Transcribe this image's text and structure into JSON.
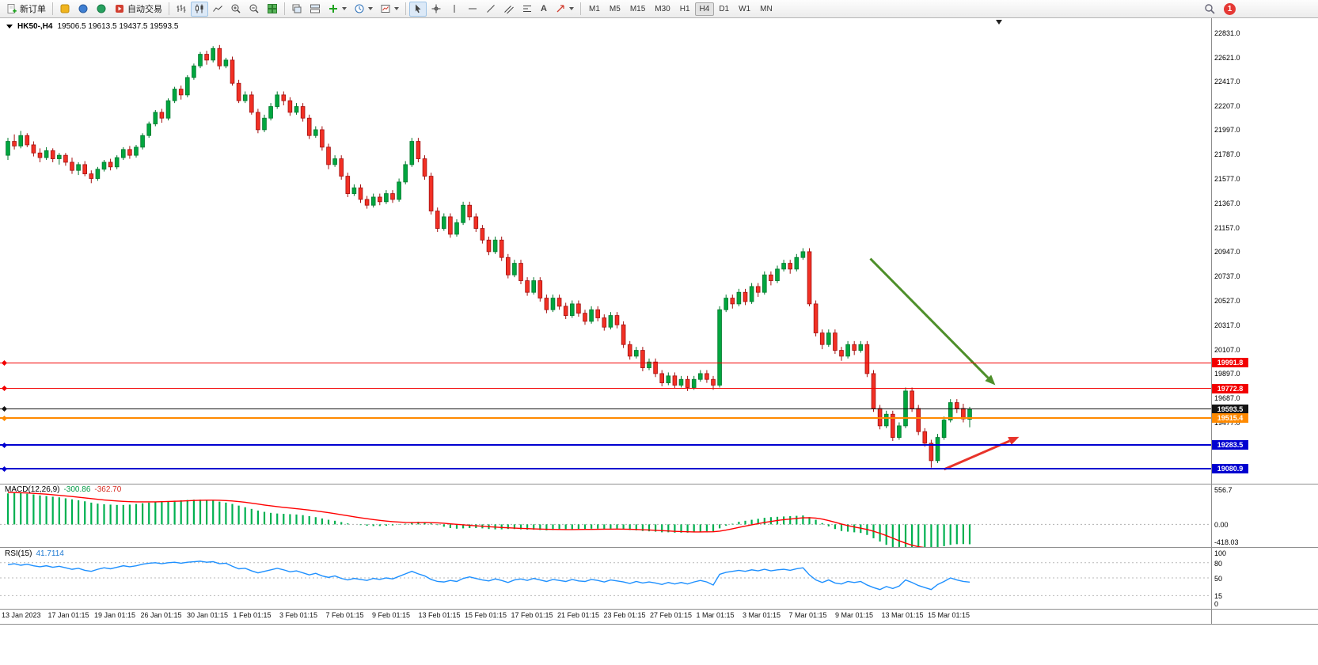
{
  "window": {
    "notification_count": "1"
  },
  "toolbar": {
    "new_order_label": "新订单",
    "autotrade_label": "自动交易",
    "timeframes": [
      "M1",
      "M5",
      "M15",
      "M30",
      "H1",
      "H4",
      "D1",
      "W1",
      "MN"
    ],
    "active_timeframe": "H4"
  },
  "chart": {
    "title_symbol": "HK50-,H4",
    "title_ohlc": "19506.5 19613.5 19437.5 19593.5",
    "price_axis_labels": [
      "22831.0",
      "22621.0",
      "22417.0",
      "22207.0",
      "21997.0",
      "21787.0",
      "21577.0",
      "21367.0",
      "21157.0",
      "20947.0",
      "20737.0",
      "20527.0",
      "20317.0",
      "20107.0",
      "19897.0",
      "19687.0",
      "19477.0"
    ],
    "price_lines": [
      {
        "price": 19991.8,
        "label": "19991.8",
        "color": "#f20000",
        "thickness": 1
      },
      {
        "price": 19772.8,
        "label": "19772.8",
        "color": "#f20000",
        "thickness": 1
      },
      {
        "price": 19593.5,
        "label": "19593.5",
        "color": "#141414",
        "thickness": 1
      },
      {
        "price": 19515.4,
        "label": "19515.4",
        "color": "#ff8a00",
        "thickness": 2
      },
      {
        "price": 19283.5,
        "label": "19283.5",
        "color": "#0000d0",
        "thickness": 2
      },
      {
        "price": 19080.9,
        "label": "19080.9",
        "color": "#0000d0",
        "thickness": 2
      }
    ],
    "time_axis_labels": [
      "13 Jan 2023",
      "17 Jan 01:15",
      "19 Jan 01:15",
      "26 Jan 01:15",
      "30 Jan 01:15",
      "1 Feb 01:15",
      "3 Feb 01:15",
      "7 Feb 01:15",
      "9 Feb 01:15",
      "13 Feb 01:15",
      "15 Feb 01:15",
      "17 Feb 01:15",
      "21 Feb 01:15",
      "23 Feb 01:15",
      "27 Feb 01:15",
      "1 Mar 01:15",
      "3 Mar 01:15",
      "7 Mar 01:15",
      "9 Mar 01:15",
      "13 Mar 01:15",
      "15 Mar 01:15"
    ]
  },
  "macd": {
    "name": "MACD(12,26,9)",
    "value": "-300.86",
    "signal_value": "-362.70",
    "scale_labels": [
      "556.7",
      "0.00",
      "-418.03"
    ]
  },
  "rsi": {
    "name": "RSI(15)",
    "value": "41.7114",
    "scale_labels": [
      "100",
      "80",
      "50",
      "15",
      "0"
    ],
    "levels": [
      80,
      50,
      15
    ]
  },
  "chart_data": {
    "type": "candlestick",
    "symbol": "HK50-",
    "timeframe": "H4",
    "current_bar": {
      "open": 19506.5,
      "high": 19613.5,
      "low": 19437.5,
      "close": 19593.5
    },
    "colors": {
      "up": "#00a63f",
      "up_edge": "#00782c",
      "down": "#f23024",
      "down_edge": "#a31010",
      "macd_hist": "#00b050",
      "macd_signal": "#ff0000",
      "rsi_line": "#1e90ff"
    },
    "candles": [
      [
        21780,
        21930,
        21740,
        21900
      ],
      [
        21900,
        21960,
        21830,
        21860
      ],
      [
        21860,
        21990,
        21840,
        21950
      ],
      [
        21950,
        21970,
        21850,
        21870
      ],
      [
        21870,
        21900,
        21770,
        21800
      ],
      [
        21800,
        21840,
        21720,
        21760
      ],
      [
        21760,
        21850,
        21740,
        21820
      ],
      [
        21820,
        21840,
        21720,
        21750
      ],
      [
        21750,
        21800,
        21700,
        21780
      ],
      [
        21780,
        21800,
        21690,
        21720
      ],
      [
        21720,
        21760,
        21620,
        21650
      ],
      [
        21650,
        21720,
        21610,
        21700
      ],
      [
        21700,
        21730,
        21600,
        21620
      ],
      [
        21620,
        21650,
        21540,
        21580
      ],
      [
        21580,
        21680,
        21560,
        21660
      ],
      [
        21660,
        21740,
        21640,
        21720
      ],
      [
        21720,
        21750,
        21650,
        21680
      ],
      [
        21680,
        21780,
        21660,
        21760
      ],
      [
        21760,
        21850,
        21740,
        21830
      ],
      [
        21830,
        21860,
        21750,
        21780
      ],
      [
        21780,
        21870,
        21760,
        21850
      ],
      [
        21850,
        21970,
        21830,
        21950
      ],
      [
        21950,
        22070,
        21930,
        22050
      ],
      [
        22050,
        22170,
        22030,
        22150
      ],
      [
        22150,
        22180,
        22060,
        22100
      ],
      [
        22100,
        22270,
        22080,
        22250
      ],
      [
        22250,
        22370,
        22230,
        22350
      ],
      [
        22350,
        22380,
        22260,
        22300
      ],
      [
        22300,
        22470,
        22280,
        22450
      ],
      [
        22450,
        22570,
        22430,
        22550
      ],
      [
        22550,
        22670,
        22530,
        22650
      ],
      [
        22650,
        22680,
        22560,
        22600
      ],
      [
        22600,
        22720,
        22580,
        22700
      ],
      [
        22700,
        22730,
        22520,
        22550
      ],
      [
        22550,
        22620,
        22530,
        22600
      ],
      [
        22600,
        22630,
        22380,
        22400
      ],
      [
        22400,
        22430,
        22230,
        22250
      ],
      [
        22250,
        22330,
        22230,
        22300
      ],
      [
        22300,
        22330,
        22130,
        22150
      ],
      [
        22150,
        22180,
        21970,
        22000
      ],
      [
        22000,
        22130,
        21980,
        22100
      ],
      [
        22100,
        22230,
        22080,
        22200
      ],
      [
        22200,
        22330,
        22180,
        22300
      ],
      [
        22300,
        22330,
        22210,
        22250
      ],
      [
        22250,
        22280,
        22120,
        22150
      ],
      [
        22150,
        22230,
        22130,
        22200
      ],
      [
        22200,
        22230,
        22070,
        22100
      ],
      [
        22100,
        22130,
        21920,
        21950
      ],
      [
        21950,
        22030,
        21930,
        22000
      ],
      [
        22000,
        22030,
        21820,
        21850
      ],
      [
        21850,
        21880,
        21660,
        21700
      ],
      [
        21700,
        21780,
        21680,
        21750
      ],
      [
        21750,
        21780,
        21570,
        21600
      ],
      [
        21600,
        21630,
        21420,
        21450
      ],
      [
        21450,
        21530,
        21430,
        21500
      ],
      [
        21500,
        21530,
        21370,
        21400
      ],
      [
        21400,
        21430,
        21320,
        21350
      ],
      [
        21350,
        21450,
        21330,
        21420
      ],
      [
        21420,
        21450,
        21350,
        21380
      ],
      [
        21380,
        21480,
        21360,
        21450
      ],
      [
        21450,
        21480,
        21370,
        21400
      ],
      [
        21400,
        21580,
        21380,
        21550
      ],
      [
        21550,
        21730,
        21530,
        21700
      ],
      [
        21700,
        21930,
        21680,
        21900
      ],
      [
        21900,
        21930,
        21720,
        21750
      ],
      [
        21750,
        21780,
        21570,
        21600
      ],
      [
        21600,
        21630,
        21270,
        21300
      ],
      [
        21300,
        21330,
        21120,
        21150
      ],
      [
        21150,
        21280,
        21130,
        21250
      ],
      [
        21250,
        21280,
        21070,
        21100
      ],
      [
        21100,
        21230,
        21080,
        21200
      ],
      [
        21200,
        21380,
        21180,
        21350
      ],
      [
        21350,
        21380,
        21220,
        21250
      ],
      [
        21250,
        21280,
        21120,
        21150
      ],
      [
        21150,
        21180,
        21020,
        21050
      ],
      [
        21050,
        21080,
        20920,
        20950
      ],
      [
        20950,
        21080,
        20930,
        21050
      ],
      [
        21050,
        21080,
        20870,
        20900
      ],
      [
        20900,
        20930,
        20720,
        20750
      ],
      [
        20750,
        20880,
        20730,
        20850
      ],
      [
        20850,
        20880,
        20670,
        20700
      ],
      [
        20700,
        20730,
        20570,
        20600
      ],
      [
        20600,
        20730,
        20580,
        20700
      ],
      [
        20700,
        20730,
        20520,
        20550
      ],
      [
        20550,
        20580,
        20420,
        20450
      ],
      [
        20450,
        20580,
        20430,
        20550
      ],
      [
        20550,
        20580,
        20450,
        20480
      ],
      [
        20480,
        20510,
        20370,
        20400
      ],
      [
        20400,
        20530,
        20380,
        20500
      ],
      [
        20500,
        20530,
        20390,
        20420
      ],
      [
        20420,
        20450,
        20320,
        20350
      ],
      [
        20350,
        20480,
        20330,
        20450
      ],
      [
        20450,
        20480,
        20350,
        20380
      ],
      [
        20380,
        20410,
        20270,
        20300
      ],
      [
        20300,
        20430,
        20280,
        20400
      ],
      [
        20400,
        20430,
        20290,
        20320
      ],
      [
        20320,
        20350,
        20120,
        20150
      ],
      [
        20150,
        20180,
        20020,
        20050
      ],
      [
        20050,
        20130,
        20030,
        20100
      ],
      [
        20100,
        20130,
        19920,
        19950
      ],
      [
        19950,
        20030,
        19930,
        20000
      ],
      [
        20000,
        20030,
        19870,
        19900
      ],
      [
        19900,
        19930,
        19790,
        19820
      ],
      [
        19820,
        19910,
        19800,
        19880
      ],
      [
        19880,
        19910,
        19770,
        19800
      ],
      [
        19800,
        19880,
        19780,
        19850
      ],
      [
        19850,
        19880,
        19750,
        19780
      ],
      [
        19780,
        19880,
        19760,
        19850
      ],
      [
        19850,
        19930,
        19830,
        19900
      ],
      [
        19900,
        19930,
        19820,
        19850
      ],
      [
        19850,
        19880,
        19760,
        19800
      ],
      [
        19800,
        20480,
        19780,
        20450
      ],
      [
        20450,
        20580,
        20430,
        20550
      ],
      [
        20550,
        20580,
        20460,
        20500
      ],
      [
        20500,
        20630,
        20480,
        20600
      ],
      [
        20600,
        20630,
        20490,
        20520
      ],
      [
        20520,
        20680,
        20500,
        20650
      ],
      [
        20650,
        20680,
        20560,
        20600
      ],
      [
        20600,
        20780,
        20580,
        20750
      ],
      [
        20750,
        20780,
        20660,
        20700
      ],
      [
        20700,
        20830,
        20680,
        20800
      ],
      [
        20800,
        20880,
        20780,
        20850
      ],
      [
        20850,
        20880,
        20760,
        20800
      ],
      [
        20800,
        20930,
        20780,
        20900
      ],
      [
        20900,
        20980,
        20880,
        20950
      ],
      [
        20950,
        20980,
        20480,
        20500
      ],
      [
        20500,
        20530,
        20220,
        20250
      ],
      [
        20250,
        20280,
        20110,
        20150
      ],
      [
        20150,
        20280,
        20130,
        20250
      ],
      [
        20250,
        20280,
        20070,
        20100
      ],
      [
        20100,
        20130,
        20010,
        20050
      ],
      [
        20050,
        20180,
        20030,
        20150
      ],
      [
        20150,
        20180,
        20060,
        20100
      ],
      [
        20100,
        20180,
        20080,
        20150
      ],
      [
        20150,
        20180,
        19870,
        19900
      ],
      [
        19900,
        19930,
        19570,
        19600
      ],
      [
        19600,
        19630,
        19420,
        19450
      ],
      [
        19450,
        19580,
        19430,
        19550
      ],
      [
        19550,
        19580,
        19320,
        19350
      ],
      [
        19350,
        19480,
        19330,
        19450
      ],
      [
        19450,
        19780,
        19430,
        19750
      ],
      [
        19750,
        19780,
        19570,
        19600
      ],
      [
        19600,
        19630,
        19370,
        19400
      ],
      [
        19400,
        19430,
        19270,
        19300
      ],
      [
        19300,
        19330,
        19090,
        19150
      ],
      [
        19150,
        19380,
        19130,
        19350
      ],
      [
        19350,
        19530,
        19330,
        19500
      ],
      [
        19500,
        19680,
        19480,
        19650
      ],
      [
        19650,
        19680,
        19560,
        19600
      ],
      [
        19600,
        19640,
        19480,
        19510
      ],
      [
        19506.5,
        19613.5,
        19437.5,
        19593.5
      ]
    ],
    "macd_histogram": [
      470,
      480,
      475,
      465,
      455,
      440,
      430,
      420,
      410,
      395,
      380,
      365,
      350,
      330,
      315,
      305,
      300,
      295,
      295,
      300,
      310,
      320,
      330,
      340,
      345,
      350,
      360,
      365,
      370,
      375,
      375,
      370,
      360,
      345,
      330,
      310,
      285,
      260,
      235,
      210,
      190,
      175,
      165,
      160,
      155,
      150,
      140,
      125,
      110,
      90,
      70,
      55,
      35,
      15,
      0,
      -10,
      -20,
      -25,
      -25,
      -20,
      -15,
      -5,
      10,
      30,
      40,
      35,
      15,
      -10,
      -35,
      -55,
      -65,
      -60,
      -55,
      -55,
      -60,
      -70,
      -75,
      -75,
      -70,
      -70,
      -75,
      -80,
      -80,
      -85,
      -90,
      -85,
      -80,
      -80,
      -75,
      -70,
      -70,
      -65,
      -65,
      -70,
      -65,
      -65,
      -75,
      -85,
      -90,
      -100,
      -105,
      -110,
      -120,
      -120,
      -125,
      -125,
      -125,
      -120,
      -110,
      -105,
      -105,
      -60,
      -20,
      10,
      40,
      55,
      70,
      85,
      100,
      110,
      115,
      120,
      125,
      130,
      135,
      110,
      70,
      20,
      -30,
      -70,
      -100,
      -110,
      -120,
      -130,
      -160,
      -210,
      -260,
      -310,
      -360,
      -410,
      -430,
      -440,
      -430,
      -410,
      -380,
      -350,
      -330,
      -310,
      -300,
      -298,
      -300.86
    ],
    "macd_signal": [
      485,
      483,
      480,
      476,
      471,
      465,
      458,
      450,
      441,
      432,
      422,
      412,
      401,
      391,
      380,
      370,
      362,
      355,
      349,
      345,
      342,
      341,
      341,
      342,
      344,
      347,
      350,
      354,
      358,
      362,
      365,
      367,
      367,
      365,
      361,
      355,
      346,
      335,
      322,
      308,
      294,
      281,
      269,
      258,
      248,
      238,
      228,
      217,
      205,
      192,
      178,
      163,
      147,
      131,
      115,
      100,
      86,
      73,
      61,
      51,
      42,
      35,
      30,
      28,
      28,
      28,
      27,
      23,
      17,
      9,
      1,
      -7,
      -14,
      -21,
      -28,
      -35,
      -41,
      -47,
      -52,
      -56,
      -60,
      -64,
      -68,
      -71,
      -74,
      -76,
      -77,
      -78,
      -78,
      -77,
      -76,
      -75,
      -74,
      -73,
      -72,
      -71,
      -72,
      -74,
      -77,
      -81,
      -85,
      -90,
      -95,
      -100,
      -105,
      -109,
      -112,
      -114,
      -114,
      -113,
      -112,
      -102,
      -86,
      -67,
      -46,
      -26,
      -7,
      11,
      29,
      45,
      59,
      71,
      81,
      91,
      100,
      102,
      95,
      80,
      58,
      32,
      5,
      -18,
      -39,
      -57,
      -77,
      -104,
      -135,
      -170,
      -208,
      -248,
      -284,
      -315,
      -338,
      -352,
      -360,
      -362,
      -366,
      -367,
      -366,
      -364,
      -362.7
    ],
    "rsi_values": [
      76,
      78,
      75,
      77,
      74,
      72,
      74,
      71,
      73,
      70,
      67,
      69,
      65,
      63,
      67,
      70,
      68,
      71,
      74,
      72,
      74,
      77,
      79,
      80,
      78,
      80,
      81,
      79,
      81,
      82,
      83,
      81,
      82,
      78,
      79,
      73,
      68,
      69,
      64,
      60,
      63,
      66,
      69,
      66,
      62,
      64,
      60,
      56,
      59,
      54,
      51,
      54,
      49,
      46,
      49,
      47,
      45,
      49,
      47,
      50,
      48,
      53,
      58,
      63,
      58,
      54,
      47,
      43,
      42,
      45,
      43,
      49,
      52,
      49,
      46,
      44,
      48,
      45,
      41,
      46,
      48,
      45,
      49,
      46,
      43,
      47,
      45,
      43,
      47,
      44,
      43,
      47,
      45,
      42,
      46,
      44,
      42,
      39,
      43,
      40,
      42,
      40,
      37,
      41,
      38,
      41,
      38,
      42,
      45,
      42,
      36,
      57,
      61,
      63,
      65,
      63,
      66,
      64,
      67,
      64,
      66,
      67,
      65,
      68,
      70,
      56,
      46,
      41,
      46,
      40,
      38,
      43,
      41,
      43,
      36,
      31,
      27,
      33,
      29,
      34,
      46,
      41,
      35,
      31,
      27,
      37,
      43,
      50,
      46,
      43,
      41.7114
    ],
    "annotations": [
      {
        "type": "arrow",
        "name": "green-trend-arrow",
        "from_index": 134.5,
        "from_price": 20890,
        "to_index": 154,
        "to_price": 19800,
        "color": "#4e8f2a",
        "width": 3
      },
      {
        "type": "arrow",
        "name": "red-signal-arrow",
        "from_index": 146,
        "from_price": 19075,
        "to_index": 157.7,
        "to_price": 19355,
        "color": "#e8332a",
        "width": 3
      }
    ]
  }
}
